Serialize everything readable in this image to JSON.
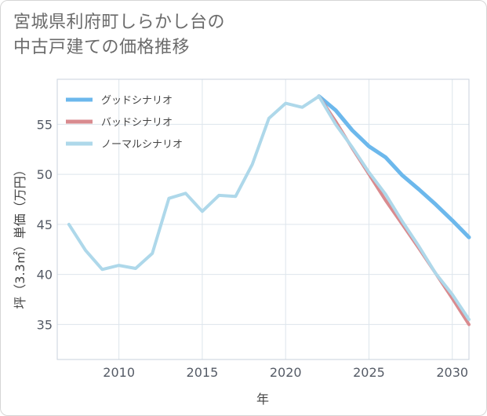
{
  "title_lines": [
    "宮城県利府町しらかし台の",
    "中古戸建ての価格推移"
  ],
  "chart_data": {
    "type": "line",
    "title": "宮城県利府町しらかし台の中古戸建ての価格推移",
    "xlabel": "年",
    "ylabel": "坪（3.3㎡）単価（万円）",
    "xlim": [
      2006.3,
      2031
    ],
    "ylim": [
      31.5,
      59.5
    ],
    "xticks": [
      2010,
      2015,
      2020,
      2025,
      2030
    ],
    "yticks": [
      35,
      40,
      45,
      50,
      55
    ],
    "grid": true,
    "legend_position": "top-left",
    "series": [
      {
        "name": "グッドシナリオ",
        "color": "#6cb8ec",
        "x": [
          2022,
          2023,
          2024,
          2025,
          2026,
          2027,
          2028,
          2029,
          2030,
          2031
        ],
        "values": [
          57.8,
          56.4,
          54.4,
          52.8,
          51.7,
          49.9,
          48.5,
          47.0,
          45.4,
          43.7
        ]
      },
      {
        "name": "バッドシナリオ",
        "color": "#d98b8f",
        "x": [
          2022,
          2023,
          2024,
          2025,
          2026,
          2027,
          2028,
          2029,
          2030,
          2031
        ],
        "values": [
          57.8,
          55.3,
          52.6,
          50.0,
          47.4,
          45.0,
          42.6,
          40.1,
          37.6,
          35.0
        ]
      },
      {
        "name": "ノーマルシナリオ",
        "color": "#aed8ea",
        "x": [
          2007,
          2008,
          2009,
          2010,
          2011,
          2012,
          2013,
          2014,
          2015,
          2016,
          2017,
          2018,
          2019,
          2020,
          2021,
          2022,
          2023,
          2024,
          2025,
          2026,
          2027,
          2028,
          2029,
          2030,
          2031
        ],
        "values": [
          45.0,
          42.4,
          40.5,
          40.9,
          40.6,
          42.1,
          47.6,
          48.1,
          46.3,
          47.9,
          47.8,
          51.0,
          55.6,
          57.1,
          56.7,
          57.8,
          55.0,
          52.7,
          50.2,
          48.0,
          45.3,
          42.8,
          40.1,
          38.0,
          35.5
        ]
      }
    ]
  }
}
